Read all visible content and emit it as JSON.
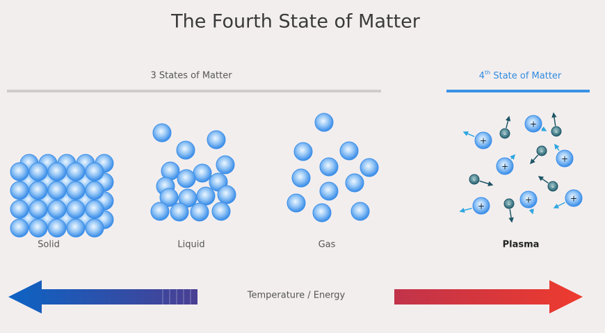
{
  "title": "The Fourth State of Matter",
  "groups": {
    "three_states": "3 States of Matter",
    "fourth_state": {
      "number": "4",
      "suffix": "th",
      "text": " State of Matter"
    }
  },
  "states": [
    "Solid",
    "Liquid",
    "Gas",
    "Plasma"
  ],
  "particles": {
    "ion_sign": "+",
    "electron_sign": "-"
  },
  "axis_label": "Temperature / Energy"
}
